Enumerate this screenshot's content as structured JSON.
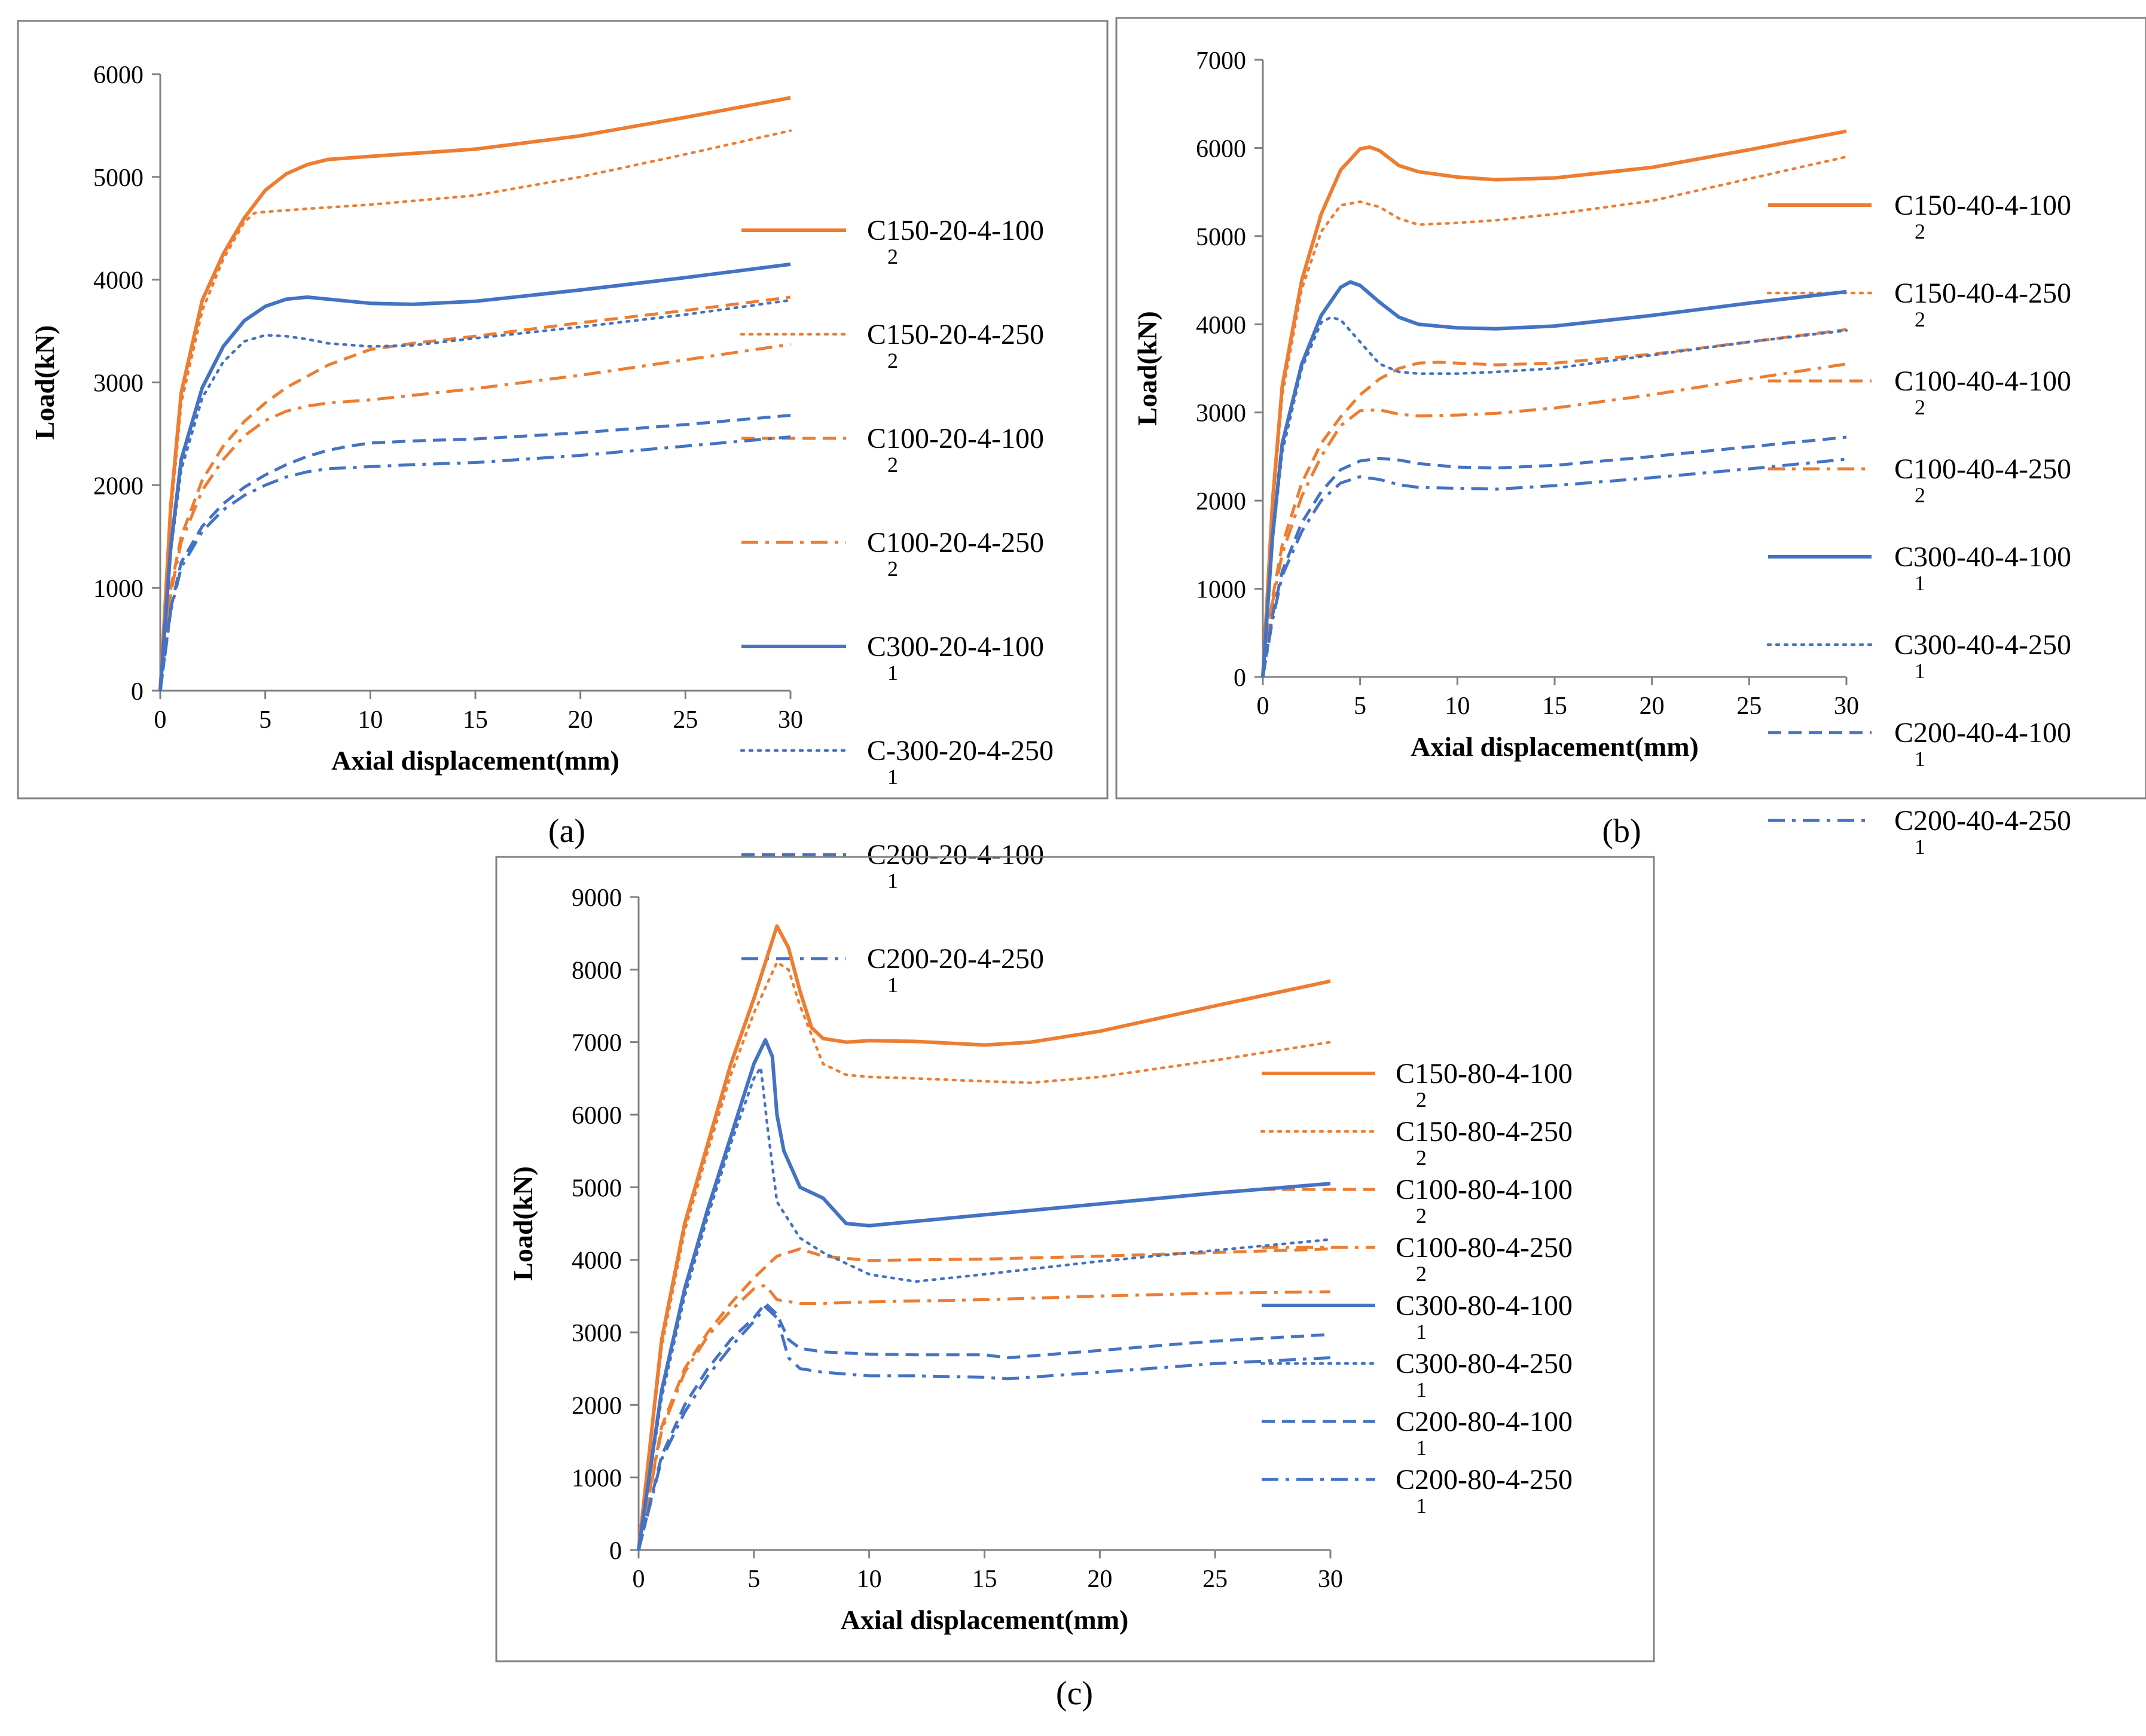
{
  "figure": {
    "panel_labels": [
      "(a)",
      "(b)",
      "(c)"
    ]
  },
  "colors": {
    "orange": "#ED7D31",
    "blue": "#4472C4",
    "axis": "#808080",
    "text": "#000000",
    "frame": "#808080"
  },
  "chart_data": [
    {
      "type": "line",
      "panel": "(a)",
      "xlabel": "Axial displacement(mm)",
      "ylabel": "Load(kN)",
      "xlim": [
        0,
        30
      ],
      "ylim": [
        0,
        6000
      ],
      "xticks": [
        0,
        5,
        10,
        15,
        20,
        25,
        30
      ],
      "yticks": [
        0,
        1000,
        2000,
        3000,
        4000,
        5000,
        6000
      ],
      "legend_position": "right",
      "series": [
        {
          "name": "C150-20-4-100",
          "sub": "2",
          "color": "orange",
          "dash": "solid",
          "x": [
            0,
            0.5,
            1,
            2,
            3,
            4,
            5,
            6,
            7,
            8,
            10,
            15,
            20,
            25,
            30
          ],
          "y": [
            0,
            1800,
            2900,
            3800,
            4250,
            4600,
            4870,
            5030,
            5120,
            5170,
            5200,
            5270,
            5400,
            5580,
            5770
          ]
        },
        {
          "name": "C150-20-4-250",
          "sub": "2",
          "color": "orange",
          "dash": "dot",
          "x": [
            0,
            0.5,
            1,
            2,
            3,
            4,
            4.5,
            5,
            7,
            10,
            15,
            20,
            25,
            30
          ],
          "y": [
            0,
            1700,
            2800,
            3700,
            4200,
            4560,
            4650,
            4660,
            4690,
            4730,
            4820,
            5000,
            5220,
            5450
          ]
        },
        {
          "name": "C100-20-4-100",
          "sub": "2",
          "color": "orange",
          "dash": "dash",
          "x": [
            0,
            0.5,
            1,
            2,
            3,
            4,
            5,
            6,
            8,
            10,
            12,
            15,
            20,
            25,
            30
          ],
          "y": [
            0,
            1000,
            1500,
            2050,
            2380,
            2620,
            2800,
            2950,
            3170,
            3320,
            3380,
            3450,
            3580,
            3700,
            3830
          ]
        },
        {
          "name": "C100-20-4-250",
          "sub": "2",
          "color": "orange",
          "dash": "dashdot",
          "x": [
            0,
            0.5,
            1,
            2,
            3,
            4,
            5,
            6,
            7,
            8,
            10,
            15,
            20,
            25,
            30
          ],
          "y": [
            0,
            950,
            1450,
            1950,
            2250,
            2480,
            2630,
            2720,
            2770,
            2800,
            2830,
            2940,
            3070,
            3220,
            3370
          ]
        },
        {
          "name": "C300-20-4-100",
          "sub": "1",
          "color": "blue",
          "dash": "solid",
          "x": [
            0,
            0.5,
            1,
            2,
            3,
            4,
            5,
            6,
            7,
            8,
            10,
            12,
            15,
            20,
            25,
            30
          ],
          "y": [
            0,
            1400,
            2250,
            2950,
            3350,
            3600,
            3740,
            3810,
            3830,
            3810,
            3770,
            3760,
            3790,
            3900,
            4020,
            4150
          ]
        },
        {
          "name": "C-300-20-4-250",
          "sub": "1",
          "color": "blue",
          "dash": "dot",
          "x": [
            0,
            0.5,
            1,
            2,
            3,
            4,
            5,
            6,
            7,
            8,
            10,
            12,
            15,
            20,
            25,
            30
          ],
          "y": [
            0,
            1350,
            2150,
            2850,
            3200,
            3400,
            3460,
            3450,
            3420,
            3380,
            3350,
            3360,
            3430,
            3540,
            3660,
            3800
          ]
        },
        {
          "name": "C200-20-4-100",
          "sub": "1",
          "color": "blue",
          "dash": "dash",
          "x": [
            0,
            0.5,
            1,
            2,
            3,
            4,
            5,
            6,
            7,
            8,
            9,
            10,
            12,
            15,
            20,
            25,
            30
          ],
          "y": [
            0,
            800,
            1250,
            1600,
            1820,
            1980,
            2100,
            2200,
            2280,
            2340,
            2380,
            2410,
            2430,
            2450,
            2510,
            2590,
            2680
          ]
        },
        {
          "name": "C200-20-4-250",
          "sub": "1",
          "color": "blue",
          "dash": "dashdot",
          "x": [
            0,
            0.5,
            1,
            2,
            3,
            4,
            5,
            6,
            7,
            8,
            10,
            12,
            15,
            20,
            25,
            30
          ],
          "y": [
            0,
            780,
            1200,
            1550,
            1760,
            1900,
            2000,
            2080,
            2130,
            2160,
            2180,
            2200,
            2220,
            2290,
            2380,
            2470
          ]
        }
      ]
    },
    {
      "type": "line",
      "panel": "(b)",
      "xlabel": "Axial displacement(mm)",
      "ylabel": "Load(kN)",
      "xlim": [
        0,
        30
      ],
      "ylim": [
        0,
        7000
      ],
      "xticks": [
        0,
        5,
        10,
        15,
        20,
        25,
        30
      ],
      "yticks": [
        0,
        1000,
        2000,
        3000,
        4000,
        5000,
        6000,
        7000
      ],
      "legend_position": "right",
      "series": [
        {
          "name": "C150-40-4-100",
          "sub": "2",
          "color": "orange",
          "dash": "solid",
          "x": [
            0,
            0.5,
            1,
            2,
            3,
            4,
            5,
            5.5,
            6,
            7,
            8,
            10,
            12,
            15,
            20,
            25,
            30
          ],
          "y": [
            0,
            2000,
            3300,
            4500,
            5250,
            5750,
            5990,
            6010,
            5970,
            5800,
            5730,
            5670,
            5640,
            5660,
            5780,
            5980,
            6190
          ]
        },
        {
          "name": "C150-40-4-250",
          "sub": "2",
          "color": "orange",
          "dash": "dot",
          "x": [
            0,
            0.5,
            1,
            2,
            3,
            4,
            5,
            6,
            7,
            8,
            10,
            12,
            15,
            20,
            25,
            30
          ],
          "y": [
            0,
            1900,
            3200,
            4400,
            5050,
            5350,
            5390,
            5330,
            5200,
            5130,
            5150,
            5180,
            5250,
            5400,
            5650,
            5900
          ]
        },
        {
          "name": "C100-40-4-100",
          "sub": "2",
          "color": "orange",
          "dash": "dash",
          "x": [
            0,
            0.5,
            1,
            2,
            3,
            4,
            5,
            6,
            7,
            8,
            9,
            10,
            12,
            15,
            20,
            25,
            30
          ],
          "y": [
            0,
            900,
            1500,
            2200,
            2650,
            2950,
            3200,
            3380,
            3500,
            3560,
            3570,
            3560,
            3540,
            3560,
            3660,
            3800,
            3940
          ]
        },
        {
          "name": "C100-40-4-250",
          "sub": "2",
          "color": "orange",
          "dash": "dashdot",
          "x": [
            0,
            0.5,
            1,
            2,
            3,
            4,
            5,
            6,
            7,
            8,
            10,
            12,
            15,
            20,
            25,
            30
          ],
          "y": [
            0,
            850,
            1400,
            2050,
            2500,
            2850,
            3020,
            3030,
            2980,
            2960,
            2970,
            2990,
            3050,
            3200,
            3380,
            3550
          ]
        },
        {
          "name": "C300-40-4-100",
          "sub": "1",
          "color": "blue",
          "dash": "solid",
          "x": [
            0,
            0.5,
            1,
            2,
            3,
            4,
            4.5,
            5,
            6,
            7,
            8,
            10,
            12,
            15,
            20,
            25,
            30
          ],
          "y": [
            0,
            1600,
            2650,
            3550,
            4100,
            4420,
            4480,
            4440,
            4250,
            4080,
            4000,
            3960,
            3950,
            3980,
            4100,
            4240,
            4370
          ]
        },
        {
          "name": "C300-40-4-250",
          "sub": "1",
          "color": "blue",
          "dash": "dot",
          "x": [
            0,
            0.5,
            1,
            2,
            3,
            3.5,
            4,
            5,
            6,
            7,
            8,
            10,
            12,
            15,
            20,
            25,
            30
          ],
          "y": [
            0,
            1550,
            2550,
            3500,
            4020,
            4080,
            4050,
            3800,
            3550,
            3460,
            3440,
            3440,
            3460,
            3500,
            3650,
            3800,
            3930
          ]
        },
        {
          "name": "C200-40-4-100",
          "sub": "1",
          "color": "blue",
          "dash": "dash",
          "x": [
            0,
            0.5,
            1,
            2,
            3,
            4,
            5,
            6,
            7,
            8,
            10,
            12,
            15,
            20,
            25,
            30
          ],
          "y": [
            0,
            700,
            1200,
            1750,
            2100,
            2350,
            2450,
            2480,
            2460,
            2420,
            2380,
            2370,
            2400,
            2500,
            2610,
            2720
          ]
        },
        {
          "name": "C200-40-4-250",
          "sub": "1",
          "color": "blue",
          "dash": "dashdot",
          "x": [
            0,
            0.5,
            1,
            2,
            3,
            4,
            5,
            6,
            7,
            8,
            10,
            12,
            15,
            20,
            25,
            30
          ],
          "y": [
            0,
            650,
            1150,
            1650,
            2000,
            2200,
            2270,
            2240,
            2180,
            2150,
            2140,
            2130,
            2170,
            2260,
            2360,
            2470
          ]
        }
      ]
    },
    {
      "type": "line",
      "panel": "(c)",
      "xlabel": "Axial displacement(mm)",
      "ylabel": "Load(kN)",
      "xlim": [
        0,
        30
      ],
      "ylim": [
        0,
        9000
      ],
      "xticks": [
        0,
        5,
        10,
        15,
        20,
        25,
        30
      ],
      "yticks": [
        0,
        1000,
        2000,
        3000,
        4000,
        5000,
        6000,
        7000,
        8000,
        9000
      ],
      "legend_position": "right",
      "series": [
        {
          "name": "C150-80-4-100",
          "sub": "2",
          "color": "orange",
          "dash": "solid",
          "x": [
            0,
            1,
            2,
            3,
            4,
            5,
            6,
            6.5,
            7,
            7.5,
            8,
            9,
            10,
            12,
            15,
            17,
            20,
            25,
            30
          ],
          "y": [
            0,
            2900,
            4500,
            5600,
            6700,
            7600,
            8600,
            8300,
            7700,
            7200,
            7050,
            7000,
            7020,
            7010,
            6960,
            7000,
            7150,
            7500,
            7840
          ]
        },
        {
          "name": "C150-80-4-250",
          "sub": "2",
          "color": "orange",
          "dash": "dot",
          "x": [
            0,
            1,
            2,
            3,
            4,
            5,
            6,
            6.5,
            7,
            8,
            9,
            10,
            12,
            15,
            17,
            20,
            25,
            30
          ],
          "y": [
            0,
            2800,
            4400,
            5500,
            6550,
            7400,
            8100,
            8000,
            7500,
            6700,
            6550,
            6520,
            6500,
            6460,
            6440,
            6520,
            6750,
            7000
          ]
        },
        {
          "name": "C100-80-4-100",
          "sub": "2",
          "color": "orange",
          "dash": "dash",
          "x": [
            0,
            1,
            2,
            3,
            4,
            5,
            6,
            7,
            8,
            10,
            12,
            15,
            20,
            25,
            30
          ],
          "y": [
            0,
            1700,
            2500,
            3000,
            3400,
            3750,
            4050,
            4150,
            4050,
            3990,
            4000,
            4010,
            4050,
            4100,
            4150
          ]
        },
        {
          "name": "C100-80-4-250",
          "sub": "2",
          "color": "orange",
          "dash": "dashdot",
          "x": [
            0,
            1,
            2,
            3,
            4,
            5,
            5.5,
            6,
            7,
            8,
            10,
            15,
            20,
            25,
            30
          ],
          "y": [
            0,
            1650,
            2450,
            2950,
            3300,
            3600,
            3650,
            3450,
            3400,
            3400,
            3420,
            3450,
            3500,
            3540,
            3560
          ]
        },
        {
          "name": "C300-80-4-100",
          "sub": "1",
          "color": "blue",
          "dash": "solid",
          "x": [
            0,
            1,
            2,
            3,
            4,
            5,
            5.5,
            5.8,
            6,
            6.3,
            7,
            8,
            9,
            10,
            15,
            20,
            25,
            30
          ],
          "y": [
            0,
            2200,
            3600,
            4700,
            5700,
            6700,
            7030,
            6800,
            6000,
            5500,
            5000,
            4850,
            4500,
            4470,
            4620,
            4770,
            4920,
            5050
          ]
        },
        {
          "name": "C300-80-4-250",
          "sub": "1",
          "color": "blue",
          "dash": "dot",
          "x": [
            0,
            1,
            2,
            3,
            4,
            5,
            5.3,
            5.6,
            6,
            7,
            8,
            10,
            12,
            15,
            20,
            25,
            30
          ],
          "y": [
            0,
            2100,
            3500,
            4600,
            5600,
            6500,
            6650,
            5800,
            4800,
            4300,
            4100,
            3800,
            3700,
            3800,
            3980,
            4130,
            4280
          ]
        },
        {
          "name": "C200-80-4-100",
          "sub": "1",
          "color": "blue",
          "dash": "dash",
          "x": [
            0,
            1,
            2,
            3,
            4,
            5,
            5.5,
            6,
            6.5,
            7,
            8,
            10,
            12,
            15,
            16,
            20,
            25,
            30
          ],
          "y": [
            0,
            1300,
            2000,
            2500,
            2900,
            3200,
            3400,
            3250,
            2900,
            2780,
            2730,
            2700,
            2690,
            2690,
            2650,
            2750,
            2880,
            2970
          ]
        },
        {
          "name": "C200-80-4-250",
          "sub": "1",
          "color": "blue",
          "dash": "dashdot",
          "x": [
            0,
            1,
            2,
            3,
            4,
            5,
            5.5,
            6,
            6.5,
            7,
            8,
            10,
            12,
            15,
            16,
            20,
            25,
            30
          ],
          "y": [
            0,
            1250,
            1900,
            2400,
            2800,
            3150,
            3350,
            3200,
            2650,
            2500,
            2450,
            2400,
            2400,
            2380,
            2360,
            2450,
            2570,
            2650
          ]
        }
      ]
    }
  ]
}
